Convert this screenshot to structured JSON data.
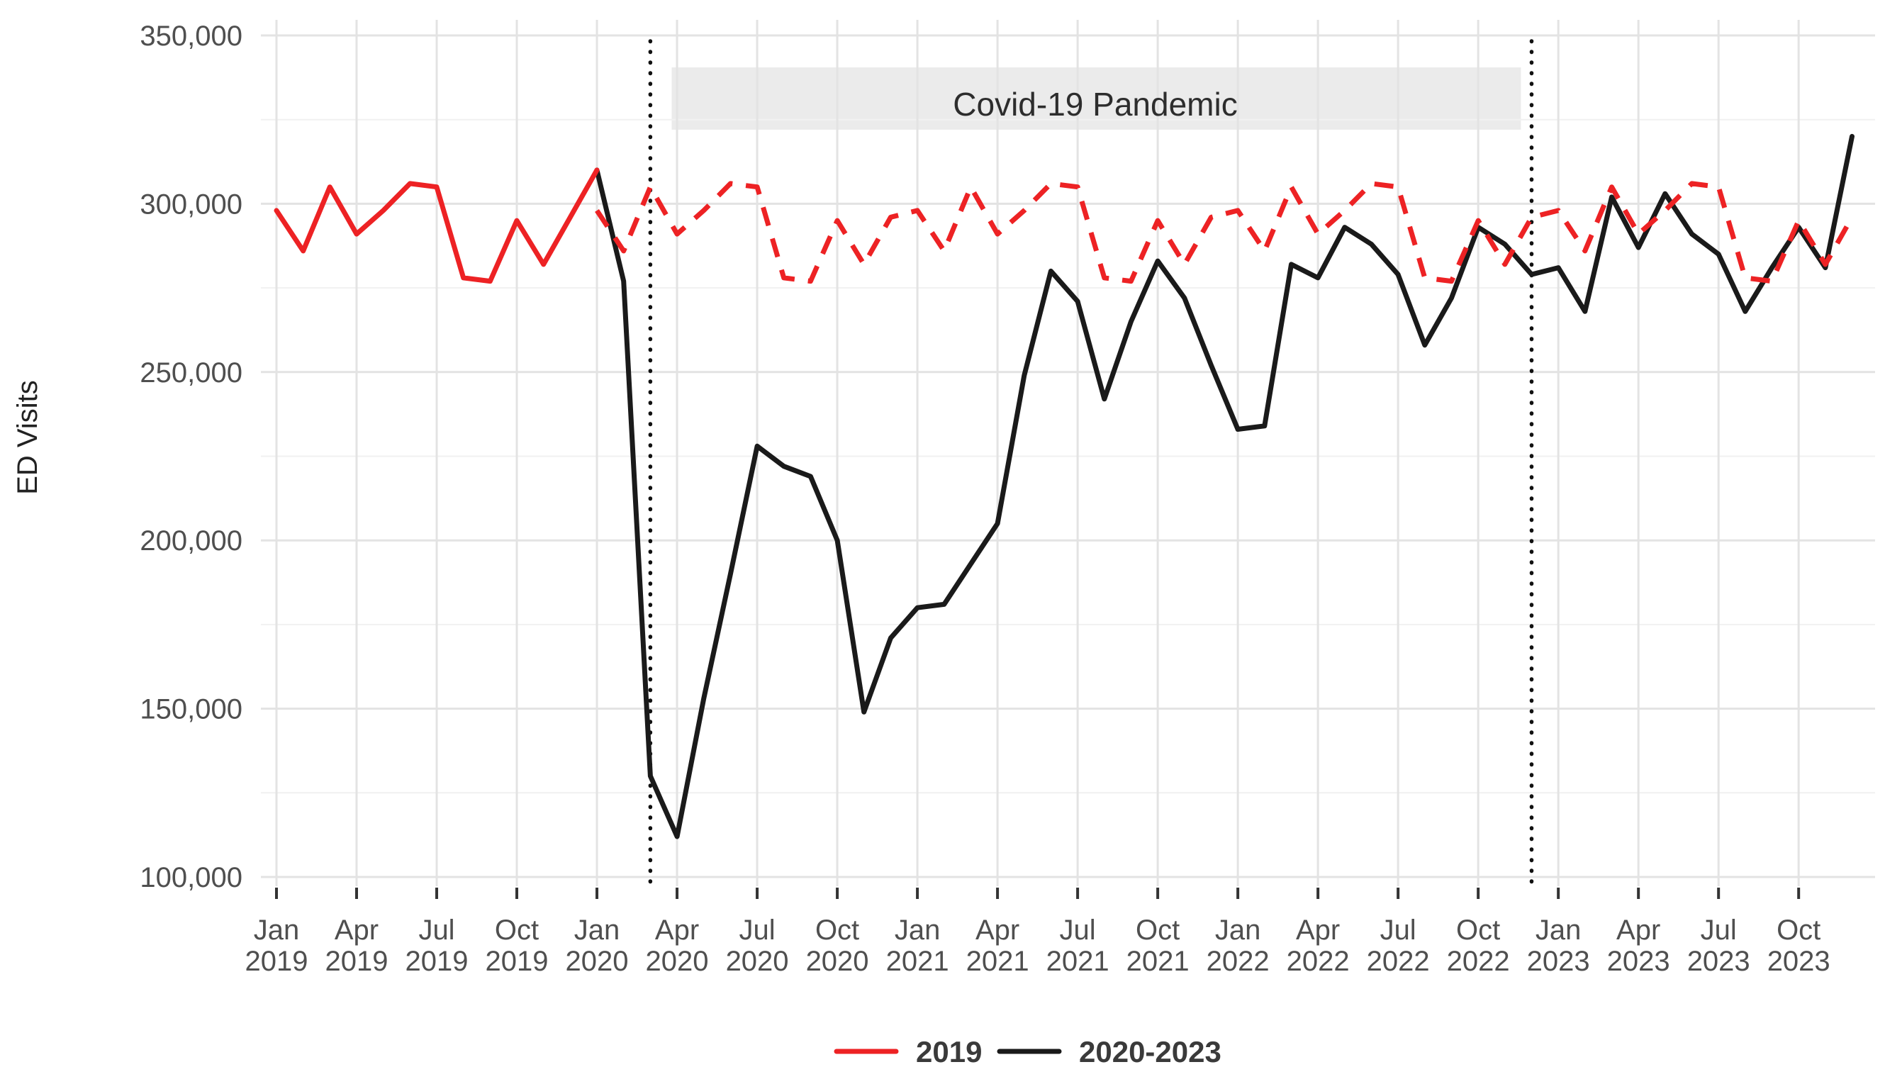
{
  "chart_data": {
    "type": "line",
    "title": "",
    "xlabel": "",
    "ylabel": "ED Visits",
    "ylim": [
      100000,
      350000
    ],
    "ytick_step": 50000,
    "yticks": [
      {
        "value": 100000,
        "label": "100,000"
      },
      {
        "value": 150000,
        "label": "150,000"
      },
      {
        "value": 200000,
        "label": "200,000"
      },
      {
        "value": 250000,
        "label": "250,000"
      },
      {
        "value": 300000,
        "label": "300,000"
      },
      {
        "value": 350000,
        "label": "350,000"
      }
    ],
    "x_domain": "Jan 2019 to Dec 2023, monthly",
    "xticks": [
      {
        "month": "Jan",
        "year": "2019"
      },
      {
        "month": "Apr",
        "year": "2019"
      },
      {
        "month": "Jul",
        "year": "2019"
      },
      {
        "month": "Oct",
        "year": "2019"
      },
      {
        "month": "Jan",
        "year": "2020"
      },
      {
        "month": "Apr",
        "year": "2020"
      },
      {
        "month": "Jul",
        "year": "2020"
      },
      {
        "month": "Oct",
        "year": "2020"
      },
      {
        "month": "Jan",
        "year": "2021"
      },
      {
        "month": "Apr",
        "year": "2021"
      },
      {
        "month": "Jul",
        "year": "2021"
      },
      {
        "month": "Oct",
        "year": "2021"
      },
      {
        "month": "Jan",
        "year": "2022"
      },
      {
        "month": "Apr",
        "year": "2022"
      },
      {
        "month": "Jul",
        "year": "2022"
      },
      {
        "month": "Oct",
        "year": "2022"
      },
      {
        "month": "Jan",
        "year": "2023"
      },
      {
        "month": "Apr",
        "year": "2023"
      },
      {
        "month": "Jul",
        "year": "2023"
      },
      {
        "month": "Oct",
        "year": "2023"
      }
    ],
    "annotation_band": {
      "label": "Covid-19 Pandemic",
      "start": "Mar 2020",
      "end": "Dec 2022",
      "start_month_index": 14.8,
      "end_month_index": 46.6,
      "value_top": 340500,
      "value_bottom": 322000,
      "fill": "#EBEBEB"
    },
    "reference_lines": [
      {
        "style": "dotted",
        "at": "Mar 2020",
        "month_index": 14,
        "color": "#111111"
      },
      {
        "style": "dotted",
        "at": "Dec 2022",
        "month_index": 47,
        "color": "#111111"
      }
    ],
    "grid": {
      "major_color": "#E3E3E3",
      "minor_color": "#F1F1F1",
      "background": "#FFFFFF"
    },
    "series": [
      {
        "name": "2019",
        "color": "#ED2224",
        "style": "solid for Jan 2019-Jan 2020, then dashed repeating the 2019 monthly values through Dec 2023",
        "months_order": [
          "Jan",
          "Feb",
          "Mar",
          "Apr",
          "May",
          "Jun",
          "Jul",
          "Aug",
          "Sep",
          "Oct",
          "Nov",
          "Dec"
        ],
        "values_2019": [
          298000,
          286000,
          305000,
          291000,
          298000,
          306000,
          305000,
          278000,
          277000,
          295000,
          282000,
          296000
        ],
        "jan_2020_endpoint": 310000
      },
      {
        "name": "2020-2023",
        "color": "#1A1A1A",
        "style": "solid",
        "values_2020": [
          310000,
          277000,
          130000,
          112000,
          153000,
          190000,
          228000,
          222000,
          219000,
          200000,
          149000,
          171000
        ],
        "values_2021": [
          180000,
          181000,
          193000,
          205000,
          249000,
          280000,
          271000,
          242000,
          265000,
          283000,
          272000,
          252000
        ],
        "values_2022": [
          233000,
          234000,
          282000,
          278000,
          293000,
          288000,
          279000,
          258000,
          272000,
          293000,
          288000,
          279000
        ],
        "values_2023": [
          281000,
          268000,
          302000,
          287000,
          303000,
          291000,
          285000,
          268000,
          281000,
          293000,
          281000,
          320000
        ]
      }
    ],
    "legend": [
      {
        "label": "2019",
        "color": "#ED2224"
      },
      {
        "label": "2020-2023",
        "color": "#1A1A1A"
      }
    ],
    "legend_position": "bottom-center"
  }
}
